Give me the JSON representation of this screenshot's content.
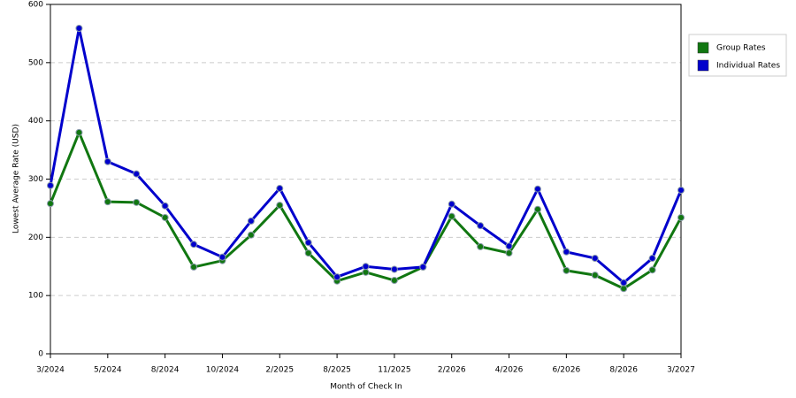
{
  "chart_data": {
    "type": "line",
    "xlabel": "Month of Check In",
    "ylabel": "Lowest Average Rate (USD)",
    "categories": [
      "3/2024",
      null,
      "5/2024",
      null,
      "8/2024",
      null,
      "10/2024",
      null,
      "2/2025",
      null,
      "8/2025",
      null,
      "11/2025",
      null,
      "2/2026",
      null,
      "4/2026",
      null,
      "6/2026",
      null,
      "8/2026",
      null,
      "3/2027"
    ],
    "series": [
      {
        "name": "Group Rates",
        "color": "#117711",
        "values": [
          258,
          380,
          261,
          260,
          234,
          149,
          160,
          204,
          255,
          173,
          125,
          140,
          126,
          149,
          236,
          184,
          173,
          248,
          143,
          135,
          112,
          144,
          234
        ]
      },
      {
        "name": "Individual Rates",
        "color": "#0000cc",
        "values": [
          289,
          559,
          330,
          309,
          254,
          188,
          166,
          228,
          284,
          191,
          132,
          150,
          145,
          149,
          257,
          220,
          185,
          283,
          175,
          164,
          122,
          164,
          281
        ]
      }
    ],
    "ylim": [
      0,
      600
    ],
    "yticks": [
      0,
      100,
      200,
      300,
      400,
      500,
      600
    ],
    "grid": true,
    "legend": "right"
  }
}
